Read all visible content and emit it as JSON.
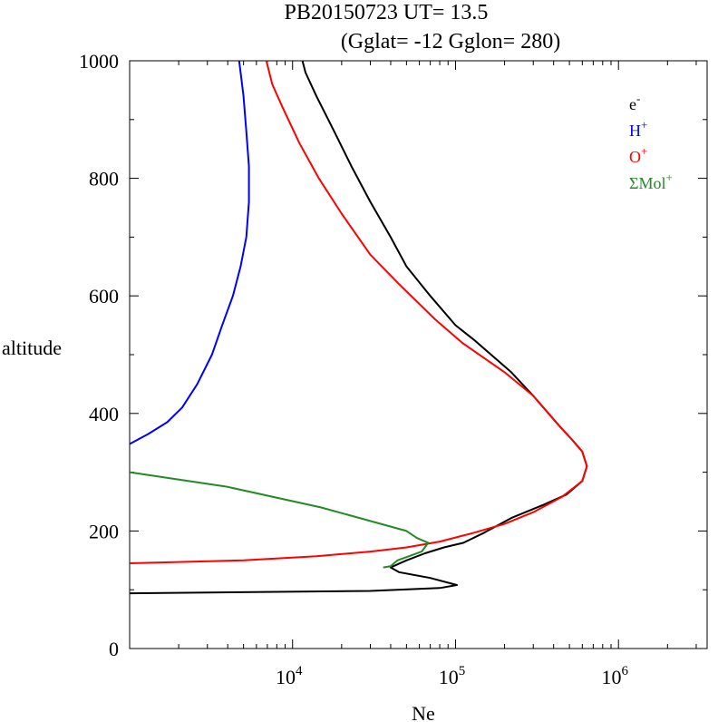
{
  "chart_data": {
    "type": "line",
    "title_line1": "PB20150723   UT=  13.5",
    "title_line2": "(Gglat= -12   Gglon=  280)",
    "xlabel": "Ne",
    "ylabel": "altitude",
    "x_scale": "log",
    "xlim": [
      1000,
      3500000
    ],
    "ylim": [
      0,
      1000
    ],
    "x_ticks": [
      {
        "value": 10000,
        "base": "10",
        "exp": "4"
      },
      {
        "value": 100000,
        "base": "10",
        "exp": "5"
      },
      {
        "value": 1000000,
        "base": "10",
        "exp": "6"
      }
    ],
    "y_ticks": [
      {
        "value": 0,
        "label": "0"
      },
      {
        "value": 200,
        "label": "200"
      },
      {
        "value": 400,
        "label": "400"
      },
      {
        "value": 600,
        "label": "600"
      },
      {
        "value": 800,
        "label": "800"
      },
      {
        "value": 1000,
        "label": "1000"
      }
    ],
    "grid": false,
    "legend_position": "top-right",
    "series": [
      {
        "name": "e-",
        "legend_base": "e",
        "legend_sup": "-",
        "color": "#000000",
        "points": [
          [
            1000,
            94
          ],
          [
            30000,
            98
          ],
          [
            80000,
            103
          ],
          [
            102000,
            108
          ],
          [
            70000,
            120
          ],
          [
            45000,
            130
          ],
          [
            40000,
            138
          ],
          [
            50000,
            150
          ],
          [
            65000,
            162
          ],
          [
            85000,
            172
          ],
          [
            112000,
            180
          ],
          [
            150000,
            197
          ],
          [
            220000,
            222
          ],
          [
            350000,
            245
          ],
          [
            480000,
            262
          ],
          [
            600000,
            285
          ],
          [
            640000,
            310
          ],
          [
            600000,
            335
          ],
          [
            520000,
            355
          ],
          [
            430000,
            380
          ],
          [
            300000,
            430
          ],
          [
            220000,
            470
          ],
          [
            130000,
            525
          ],
          [
            100000,
            550
          ],
          [
            70000,
            600
          ],
          [
            50000,
            650
          ],
          [
            40000,
            700
          ],
          [
            30000,
            760
          ],
          [
            23000,
            820
          ],
          [
            18000,
            880
          ],
          [
            14000,
            940
          ],
          [
            12000,
            980
          ],
          [
            11500,
            1000
          ]
        ]
      },
      {
        "name": "H+",
        "legend_base": "H",
        "legend_sup": "+",
        "color": "#0000ff",
        "points": [
          [
            1000,
            348
          ],
          [
            1300,
            365
          ],
          [
            1700,
            385
          ],
          [
            2100,
            410
          ],
          [
            2600,
            450
          ],
          [
            3200,
            500
          ],
          [
            3700,
            550
          ],
          [
            4300,
            600
          ],
          [
            4800,
            650
          ],
          [
            5200,
            700
          ],
          [
            5400,
            760
          ],
          [
            5400,
            820
          ],
          [
            5200,
            880
          ],
          [
            5000,
            940
          ],
          [
            4800,
            980
          ],
          [
            4700,
            1000
          ]
        ]
      },
      {
        "name": "O+",
        "legend_base": "O",
        "legend_sup": "+",
        "color": "#ff0000",
        "points": [
          [
            1000,
            145
          ],
          [
            5000,
            150
          ],
          [
            14000,
            157
          ],
          [
            30000,
            165
          ],
          [
            50000,
            172
          ],
          [
            80000,
            182
          ],
          [
            130000,
            197
          ],
          [
            200000,
            212
          ],
          [
            300000,
            232
          ],
          [
            450000,
            258
          ],
          [
            600000,
            285
          ],
          [
            640000,
            310
          ],
          [
            600000,
            335
          ],
          [
            520000,
            355
          ],
          [
            430000,
            380
          ],
          [
            300000,
            430
          ],
          [
            200000,
            470
          ],
          [
            110000,
            520
          ],
          [
            75000,
            560
          ],
          [
            45000,
            620
          ],
          [
            30000,
            670
          ],
          [
            20000,
            740
          ],
          [
            14500,
            800
          ],
          [
            11000,
            860
          ],
          [
            8700,
            920
          ],
          [
            7500,
            960
          ],
          [
            6900,
            1000
          ]
        ]
      },
      {
        "name": "ΣMol+",
        "legend_base": "ΣMol",
        "legend_sup": "+",
        "color": "#228b22",
        "points": [
          [
            1000,
            300
          ],
          [
            4000,
            275
          ],
          [
            15000,
            240
          ],
          [
            50000,
            200
          ],
          [
            58000,
            188
          ],
          [
            68000,
            180
          ],
          [
            62000,
            165
          ],
          [
            53000,
            158
          ],
          [
            44000,
            150
          ],
          [
            40000,
            140
          ],
          [
            36000,
            138
          ]
        ]
      }
    ]
  }
}
